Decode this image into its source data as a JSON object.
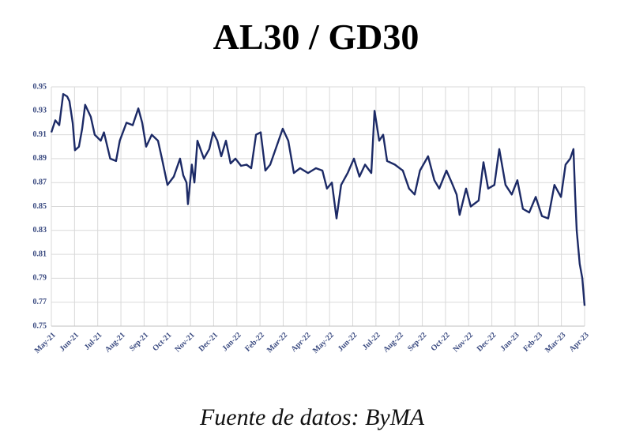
{
  "chart_data": {
    "type": "line",
    "title": "AL30 / GD30",
    "source": "Fuente de datos: ByMA",
    "x": [
      0,
      0.17,
      0.34,
      0.51,
      0.68,
      0.78,
      0.92,
      1.02,
      1.19,
      1.33,
      1.46,
      1.7,
      1.87,
      2.13,
      2.27,
      2.54,
      2.79,
      2.95,
      3.24,
      3.51,
      3.75,
      3.92,
      4.09,
      4.33,
      4.6,
      4.77,
      5.01,
      5.28,
      5.55,
      5.69,
      5.83,
      5.89,
      6.06,
      6.17,
      6.3,
      6.58,
      6.81,
      6.98,
      7.16,
      7.33,
      7.53,
      7.73,
      7.94,
      8.18,
      8.42,
      8.62,
      8.83,
      9.03,
      9.23,
      9.44,
      9.98,
      10.22,
      10.46,
      10.73,
      11.07,
      11.41,
      11.69,
      11.89,
      12.1,
      12.3,
      12.5,
      12.78,
      13.05,
      13.29,
      13.53,
      13.8,
      13.94,
      14.14,
      14.31,
      14.48,
      14.82,
      15.16,
      15.43,
      15.67,
      15.9,
      16.25,
      16.52,
      16.73,
      17.04,
      17.27,
      17.48,
      17.61,
      17.89,
      18.09,
      18.43,
      18.64,
      18.84,
      19.11,
      19.32,
      19.59,
      19.86,
      20.1,
      20.34,
      20.61,
      20.89,
      21.16,
      21.43,
      21.7,
      21.98,
      22.18,
      22.38,
      22.52,
      22.59,
      22.66,
      22.79,
      22.9,
      23
    ],
    "series": [
      {
        "color": "#1c2a66",
        "values": [
          0.912,
          0.922,
          0.918,
          0.944,
          0.942,
          0.938,
          0.92,
          0.897,
          0.9,
          0.915,
          0.935,
          0.925,
          0.91,
          0.905,
          0.912,
          0.89,
          0.888,
          0.905,
          0.92,
          0.918,
          0.932,
          0.92,
          0.9,
          0.91,
          0.905,
          0.89,
          0.868,
          0.875,
          0.89,
          0.876,
          0.87,
          0.852,
          0.885,
          0.87,
          0.905,
          0.89,
          0.898,
          0.912,
          0.905,
          0.892,
          0.905,
          0.886,
          0.89,
          0.884,
          0.885,
          0.882,
          0.91,
          0.912,
          0.88,
          0.885,
          0.915,
          0.905,
          0.878,
          0.882,
          0.878,
          0.882,
          0.88,
          0.865,
          0.87,
          0.84,
          0.868,
          0.878,
          0.89,
          0.875,
          0.885,
          0.878,
          0.93,
          0.905,
          0.91,
          0.888,
          0.885,
          0.88,
          0.865,
          0.86,
          0.88,
          0.892,
          0.872,
          0.865,
          0.88,
          0.87,
          0.86,
          0.843,
          0.865,
          0.85,
          0.855,
          0.887,
          0.865,
          0.868,
          0.898,
          0.868,
          0.86,
          0.872,
          0.848,
          0.845,
          0.858,
          0.842,
          0.84,
          0.868,
          0.858,
          0.885,
          0.89,
          0.898,
          0.86,
          0.83,
          0.802,
          0.79,
          0.767
        ]
      }
    ],
    "xlim": [
      0,
      23
    ],
    "xticks": [
      {
        "value": 0,
        "label": "May-21"
      },
      {
        "value": 1,
        "label": "Jun-21"
      },
      {
        "value": 2,
        "label": "Jul-21"
      },
      {
        "value": 3,
        "label": "Aug-21"
      },
      {
        "value": 4,
        "label": "Sep-21"
      },
      {
        "value": 5,
        "label": "Oct-21"
      },
      {
        "value": 6,
        "label": "Nov-21"
      },
      {
        "value": 7,
        "label": "Dec-21"
      },
      {
        "value": 8,
        "label": "Jan-22"
      },
      {
        "value": 9,
        "label": "Feb-22"
      },
      {
        "value": 10,
        "label": "Mar-22"
      },
      {
        "value": 11,
        "label": "Apr-22"
      },
      {
        "value": 12,
        "label": "May-22"
      },
      {
        "value": 13,
        "label": "Jun-22"
      },
      {
        "value": 14,
        "label": "Jul-22"
      },
      {
        "value": 15,
        "label": "Aug-22"
      },
      {
        "value": 16,
        "label": "Sep-22"
      },
      {
        "value": 17,
        "label": "Oct-22"
      },
      {
        "value": 18,
        "label": "Nov-22"
      },
      {
        "value": 19,
        "label": "Dec-22"
      },
      {
        "value": 20,
        "label": "Jan-23"
      },
      {
        "value": 21,
        "label": "Feb-23"
      },
      {
        "value": 22,
        "label": "Mar-23"
      },
      {
        "value": 23,
        "label": "Apr-23"
      }
    ],
    "ylim": [
      0.75,
      0.95
    ],
    "yticks": [
      0.75,
      0.77,
      0.79,
      0.81,
      0.83,
      0.85,
      0.87,
      0.89,
      0.91,
      0.93,
      0.95
    ],
    "grid": true
  }
}
